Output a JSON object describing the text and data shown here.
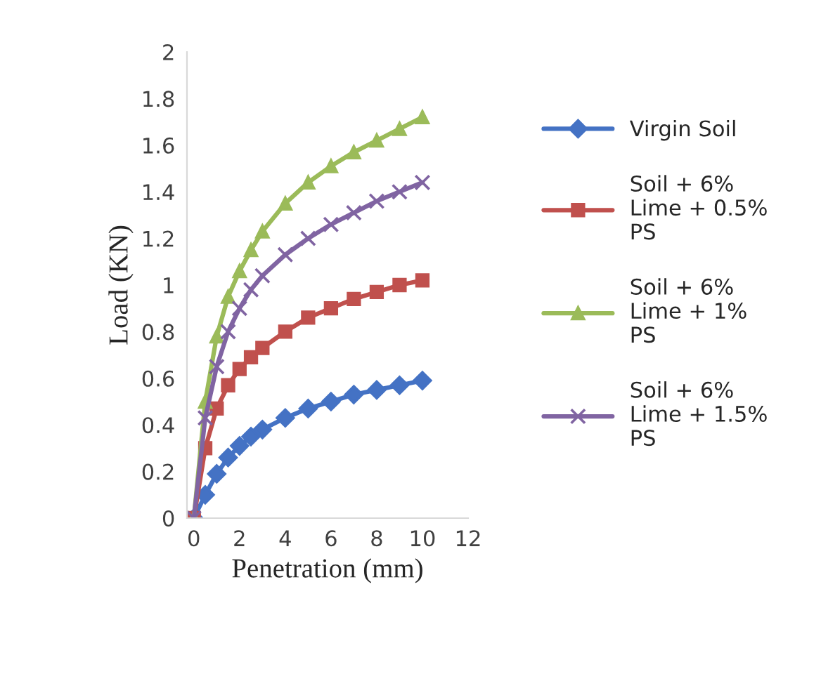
{
  "chart_data": {
    "type": "line",
    "xlabel": "Penetration (mm)",
    "ylabel": "Load (KN)",
    "x": [
      0,
      0.5,
      1,
      1.5,
      2,
      2.5,
      3,
      4,
      5,
      6,
      7,
      8,
      9,
      10
    ],
    "xlim": [
      -0.3,
      12
    ],
    "xticks": [
      0,
      2,
      4,
      6,
      8,
      10,
      12
    ],
    "ylim": [
      0,
      2
    ],
    "yticks": [
      0,
      0.2,
      0.4,
      0.6,
      0.8,
      1,
      1.2,
      1.4,
      1.6,
      1.8,
      2
    ],
    "grid": false,
    "legend": "right",
    "series": [
      {
        "name": "Virgin Soil",
        "color": "#4472c4",
        "marker": "diamond",
        "values": [
          0,
          0.1,
          0.19,
          0.26,
          0.31,
          0.35,
          0.38,
          0.43,
          0.47,
          0.5,
          0.53,
          0.55,
          0.57,
          0.59
        ]
      },
      {
        "name": "Soil + 6%\nLime + 0.5%\nPS",
        "color": "#c0504d",
        "marker": "square",
        "values": [
          0,
          0.3,
          0.47,
          0.57,
          0.64,
          0.69,
          0.73,
          0.8,
          0.86,
          0.9,
          0.94,
          0.97,
          1.0,
          1.02
        ]
      },
      {
        "name": "Soil + 6%\nLime + 1%\nPS",
        "color": "#9bbb59",
        "marker": "triangle",
        "values": [
          0,
          0.5,
          0.78,
          0.95,
          1.06,
          1.15,
          1.23,
          1.35,
          1.44,
          1.51,
          1.57,
          1.62,
          1.67,
          1.72
        ]
      },
      {
        "name": "Soil + 6%\nLime + 1.5%\nPS",
        "color": "#8064a2",
        "marker": "cross",
        "values": [
          0,
          0.43,
          0.65,
          0.8,
          0.9,
          0.98,
          1.04,
          1.13,
          1.2,
          1.26,
          1.31,
          1.36,
          1.4,
          1.44
        ]
      }
    ]
  }
}
